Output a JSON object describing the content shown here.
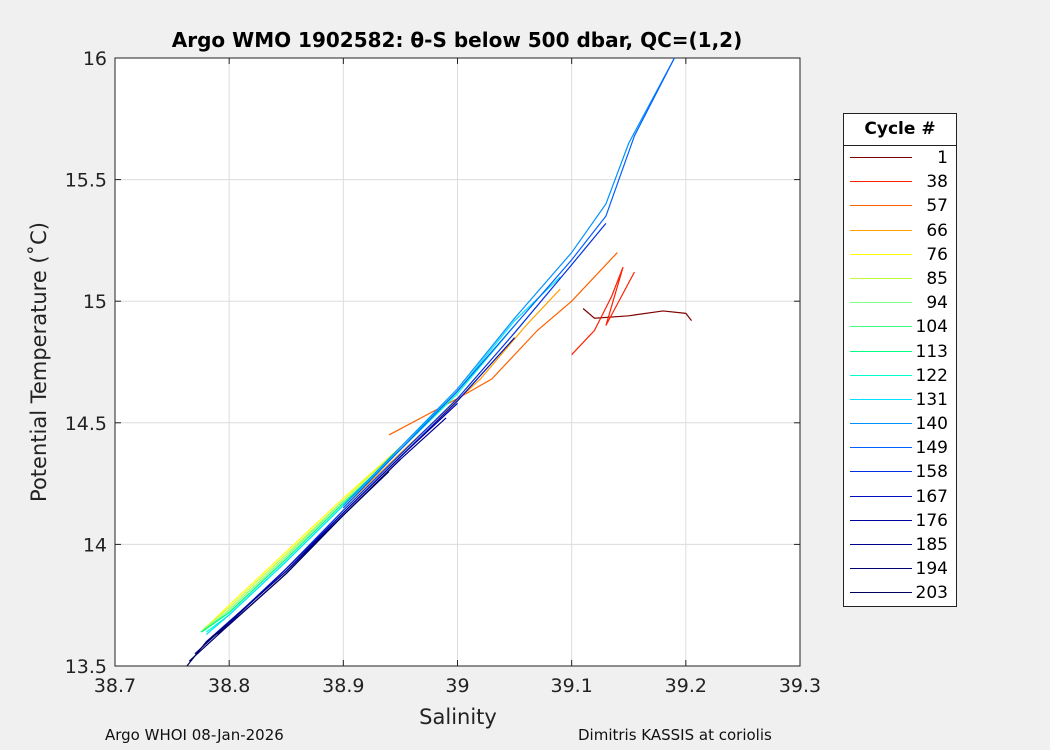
{
  "chart_data": {
    "type": "line",
    "title": "Argo WMO 1902582: θ-S below 500 dbar,  QC=(1,2)",
    "xlabel": "Salinity",
    "ylabel": "Potential Temperature (˚C)",
    "xlim": [
      38.7,
      39.3
    ],
    "ylim": [
      13.5,
      16
    ],
    "xticks": [
      38.7,
      38.8,
      38.9,
      39,
      39.1,
      39.2,
      39.3
    ],
    "xtick_labels": [
      "38.7",
      "38.8",
      "38.9",
      "39",
      "39.1",
      "39.2",
      "39.3"
    ],
    "yticks": [
      13.5,
      14,
      14.5,
      15,
      15.5,
      16
    ],
    "ytick_labels": [
      "13.5",
      "14",
      "14.5",
      "15",
      "15.5",
      "16"
    ],
    "grid": true,
    "legend_title": "Cycle #",
    "legend_placement": "right-outside",
    "series": [
      {
        "name": "1",
        "color": "#800000",
        "points": [
          [
            39.11,
            14.97
          ],
          [
            39.12,
            14.93
          ],
          [
            39.15,
            14.94
          ],
          [
            39.18,
            14.96
          ],
          [
            39.2,
            14.95
          ],
          [
            39.205,
            14.92
          ]
        ]
      },
      {
        "name": "38",
        "color": "#ff2000",
        "points": [
          [
            39.1,
            14.78
          ],
          [
            39.12,
            14.88
          ],
          [
            39.135,
            15.02
          ],
          [
            39.145,
            15.14
          ],
          [
            39.13,
            14.9
          ],
          [
            39.155,
            15.12
          ]
        ]
      },
      {
        "name": "57",
        "color": "#ff6000",
        "points": [
          [
            38.94,
            14.45
          ],
          [
            39.0,
            14.6
          ],
          [
            39.03,
            14.68
          ],
          [
            39.07,
            14.88
          ],
          [
            39.1,
            15.0
          ],
          [
            39.14,
            15.2
          ]
        ]
      },
      {
        "name": "66",
        "color": "#ffa000",
        "points": [
          [
            38.9,
            14.15
          ],
          [
            38.96,
            14.42
          ],
          [
            39.02,
            14.68
          ],
          [
            39.06,
            14.9
          ],
          [
            39.09,
            15.05
          ]
        ]
      },
      {
        "name": "76",
        "color": "#ffff00",
        "points": [
          [
            38.78,
            13.66
          ],
          [
            38.8,
            13.75
          ],
          [
            38.85,
            13.97
          ],
          [
            38.9,
            14.19
          ],
          [
            38.95,
            14.4
          ]
        ]
      },
      {
        "name": "85",
        "color": "#c0ff40",
        "points": [
          [
            38.777,
            13.65
          ],
          [
            38.8,
            13.74
          ],
          [
            38.85,
            13.96
          ],
          [
            38.9,
            14.18
          ],
          [
            38.95,
            14.4
          ]
        ]
      },
      {
        "name": "94",
        "color": "#80ff80",
        "points": [
          [
            38.776,
            13.64
          ],
          [
            38.8,
            13.73
          ],
          [
            38.85,
            13.95
          ],
          [
            38.9,
            14.18
          ]
        ]
      },
      {
        "name": "104",
        "color": "#40ff80",
        "points": [
          [
            38.775,
            13.64
          ],
          [
            38.8,
            13.72
          ],
          [
            38.85,
            13.94
          ],
          [
            38.9,
            14.17
          ],
          [
            38.95,
            14.39
          ]
        ]
      },
      {
        "name": "113",
        "color": "#00ff80",
        "points": [
          [
            38.776,
            13.64
          ],
          [
            38.8,
            13.72
          ],
          [
            38.85,
            13.94
          ],
          [
            38.9,
            14.17
          ],
          [
            38.95,
            14.39
          ],
          [
            39.0,
            14.62
          ]
        ]
      },
      {
        "name": "122",
        "color": "#00ffd0",
        "points": [
          [
            38.78,
            13.64
          ],
          [
            38.8,
            13.71
          ],
          [
            38.85,
            13.93
          ],
          [
            38.9,
            14.16
          ],
          [
            38.95,
            14.39
          ],
          [
            39.0,
            14.62
          ],
          [
            39.05,
            14.9
          ]
        ]
      },
      {
        "name": "131",
        "color": "#00e0ff",
        "points": [
          [
            38.78,
            13.63
          ],
          [
            38.8,
            13.71
          ],
          [
            38.85,
            13.93
          ],
          [
            38.9,
            14.16
          ],
          [
            38.95,
            14.4
          ],
          [
            39.0,
            14.63
          ],
          [
            39.05,
            14.92
          ],
          [
            39.09,
            15.1
          ]
        ]
      },
      {
        "name": "140",
        "color": "#0090ff",
        "points": [
          [
            38.9,
            14.16
          ],
          [
            38.95,
            14.4
          ],
          [
            39.0,
            14.64
          ],
          [
            39.05,
            14.93
          ],
          [
            39.1,
            15.2
          ],
          [
            39.13,
            15.4
          ],
          [
            39.15,
            15.65
          ],
          [
            39.19,
            16.0
          ]
        ]
      },
      {
        "name": "149",
        "color": "#0060ff",
        "points": [
          [
            38.9,
            14.15
          ],
          [
            38.95,
            14.39
          ],
          [
            39.0,
            14.63
          ],
          [
            39.05,
            14.9
          ],
          [
            39.1,
            15.17
          ],
          [
            39.13,
            15.35
          ],
          [
            39.155,
            15.68
          ],
          [
            39.19,
            16.0
          ]
        ]
      },
      {
        "name": "158",
        "color": "#0030e0",
        "points": [
          [
            38.8,
            13.68
          ],
          [
            38.85,
            13.9
          ],
          [
            38.9,
            14.14
          ],
          [
            38.95,
            14.37
          ],
          [
            39.0,
            14.6
          ],
          [
            39.05,
            14.87
          ],
          [
            39.1,
            15.15
          ],
          [
            39.13,
            15.32
          ]
        ]
      },
      {
        "name": "167",
        "color": "#0010c0",
        "points": [
          [
            38.79,
            13.63
          ],
          [
            38.85,
            13.9
          ],
          [
            38.9,
            14.13
          ],
          [
            38.95,
            14.36
          ],
          [
            39.0,
            14.59
          ],
          [
            39.05,
            14.85
          ]
        ]
      },
      {
        "name": "176",
        "color": "#0000a0",
        "points": [
          [
            38.78,
            13.6
          ],
          [
            38.85,
            13.89
          ],
          [
            38.9,
            14.13
          ],
          [
            38.95,
            14.36
          ],
          [
            39.0,
            14.58
          ]
        ]
      },
      {
        "name": "185",
        "color": "#000090",
        "points": [
          [
            38.77,
            13.55
          ],
          [
            38.8,
            13.68
          ],
          [
            38.85,
            13.89
          ],
          [
            38.9,
            14.12
          ],
          [
            38.95,
            14.35
          ],
          [
            38.99,
            14.52
          ]
        ]
      },
      {
        "name": "194",
        "color": "#000070",
        "points": [
          [
            38.765,
            13.52
          ],
          [
            38.8,
            13.67
          ],
          [
            38.85,
            13.88
          ],
          [
            38.9,
            14.12
          ],
          [
            38.95,
            14.35
          ]
        ]
      },
      {
        "name": "203",
        "color": "#000060",
        "points": [
          [
            38.763,
            13.5
          ],
          [
            38.78,
            13.6
          ],
          [
            38.8,
            13.67
          ],
          [
            38.85,
            13.88
          ],
          [
            38.9,
            14.12
          ],
          [
            38.94,
            14.3
          ]
        ]
      }
    ]
  },
  "footer": {
    "left": "Argo WHOI 08-Jan-2026",
    "right": "Dimitris KASSIS at coriolis"
  }
}
